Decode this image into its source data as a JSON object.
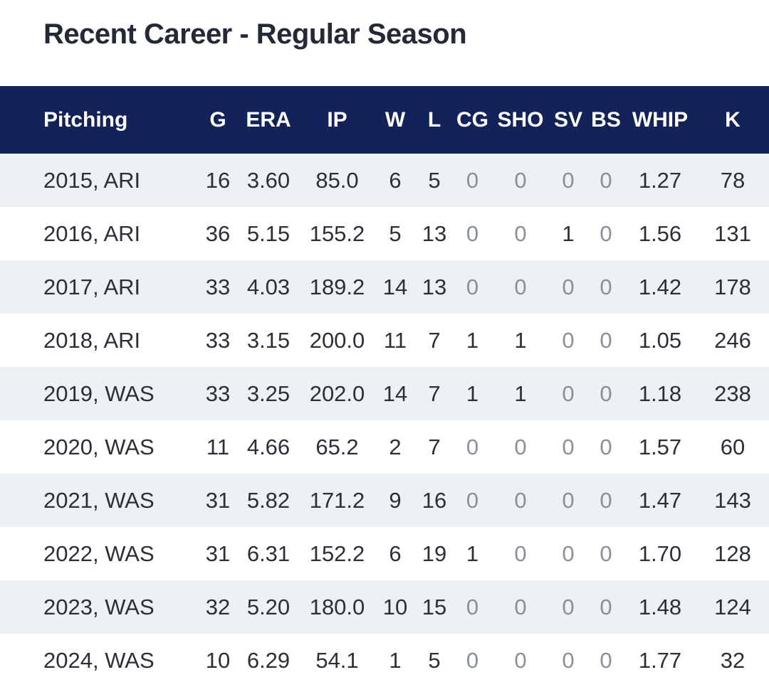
{
  "title": "Recent Career - Regular Season",
  "columns": [
    "Pitching",
    "G",
    "ERA",
    "IP",
    "W",
    "L",
    "CG",
    "SHO",
    "SV",
    "BS",
    "WHIP",
    "K"
  ],
  "rows": [
    [
      "2015, ARI",
      "16",
      "3.60",
      "85.0",
      "6",
      "5",
      "0",
      "0",
      "0",
      "0",
      "1.27",
      "78"
    ],
    [
      "2016, ARI",
      "36",
      "5.15",
      "155.2",
      "5",
      "13",
      "0",
      "0",
      "1",
      "0",
      "1.56",
      "131"
    ],
    [
      "2017, ARI",
      "33",
      "4.03",
      "189.2",
      "14",
      "13",
      "0",
      "0",
      "0",
      "0",
      "1.42",
      "178"
    ],
    [
      "2018, ARI",
      "33",
      "3.15",
      "200.0",
      "11",
      "7",
      "1",
      "1",
      "0",
      "0",
      "1.05",
      "246"
    ],
    [
      "2019, WAS",
      "33",
      "3.25",
      "202.0",
      "14",
      "7",
      "1",
      "1",
      "0",
      "0",
      "1.18",
      "238"
    ],
    [
      "2020, WAS",
      "11",
      "4.66",
      "65.2",
      "2",
      "7",
      "0",
      "0",
      "0",
      "0",
      "1.57",
      "60"
    ],
    [
      "2021, WAS",
      "31",
      "5.82",
      "171.2",
      "9",
      "16",
      "0",
      "0",
      "0",
      "0",
      "1.47",
      "143"
    ],
    [
      "2022, WAS",
      "31",
      "6.31",
      "152.2",
      "6",
      "19",
      "1",
      "0",
      "0",
      "0",
      "1.70",
      "128"
    ],
    [
      "2023, WAS",
      "32",
      "5.20",
      "180.0",
      "10",
      "15",
      "0",
      "0",
      "0",
      "0",
      "1.48",
      "124"
    ],
    [
      "2024, WAS",
      "10",
      "6.29",
      "54.1",
      "1",
      "5",
      "0",
      "0",
      "0",
      "0",
      "1.77",
      "32"
    ]
  ],
  "colors": {
    "header_background": "#14225a",
    "header_text": "#ffffff",
    "row_shade": "#eef1f4",
    "zero_value_text": "#8a9099"
  }
}
